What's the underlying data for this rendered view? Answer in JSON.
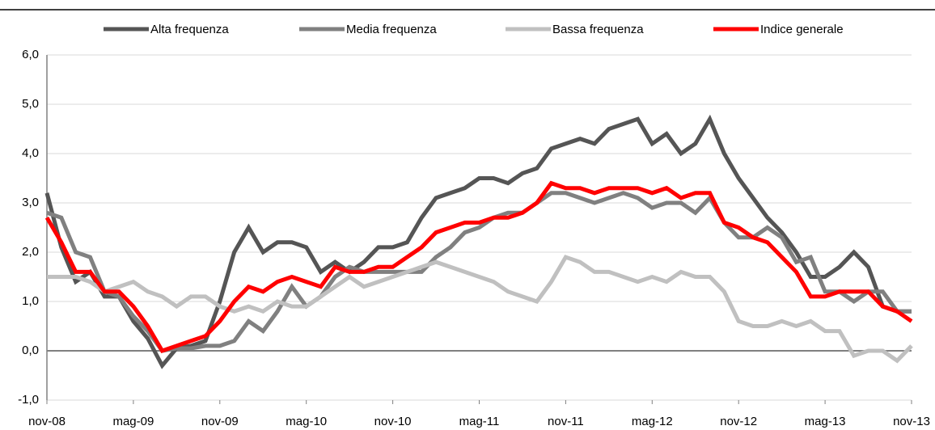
{
  "chart_data": {
    "type": "line",
    "categories": [
      "nov-08",
      null,
      null,
      null,
      null,
      null,
      "mag-09",
      null,
      null,
      null,
      null,
      null,
      "nov-09",
      null,
      null,
      null,
      null,
      null,
      "mag-10",
      null,
      null,
      null,
      null,
      null,
      "nov-10",
      null,
      null,
      null,
      null,
      null,
      "mag-11",
      null,
      null,
      null,
      null,
      null,
      "nov-11",
      null,
      null,
      null,
      null,
      null,
      "mag-12",
      null,
      null,
      null,
      null,
      null,
      "nov-12",
      null,
      null,
      null,
      null,
      null,
      "mag-13",
      null,
      null,
      null,
      null,
      null,
      "nov-13"
    ],
    "series": [
      {
        "name": "Alta frequenza",
        "color": "#555555",
        "values": [
          3.2,
          2.1,
          1.4,
          1.6,
          1.1,
          1.1,
          0.6,
          0.25,
          -0.3,
          0.05,
          0.1,
          0.2,
          1.0,
          2.0,
          2.5,
          2.0,
          2.2,
          2.2,
          2.1,
          1.6,
          1.8,
          1.6,
          1.8,
          2.1,
          2.1,
          2.2,
          2.7,
          3.1,
          3.2,
          3.3,
          3.5,
          3.5,
          3.4,
          3.6,
          3.7,
          4.1,
          4.2,
          4.3,
          4.2,
          4.5,
          4.6,
          4.7,
          4.2,
          4.4,
          4.0,
          4.2,
          4.7,
          4.0,
          3.5,
          3.1,
          2.7,
          2.4,
          2.0,
          1.5,
          1.5,
          1.7,
          2.0,
          1.7,
          0.9,
          0.8,
          0.8
        ]
      },
      {
        "name": "Media frequenza",
        "color": "#808080",
        "values": [
          2.8,
          2.7,
          2.0,
          1.9,
          1.2,
          1.1,
          0.7,
          0.4,
          0.0,
          0.05,
          0.05,
          0.1,
          0.1,
          0.2,
          0.6,
          0.4,
          0.8,
          1.3,
          0.9,
          1.1,
          1.5,
          1.7,
          1.6,
          1.6,
          1.6,
          1.6,
          1.6,
          1.9,
          2.1,
          2.4,
          2.5,
          2.7,
          2.8,
          2.8,
          3.0,
          3.2,
          3.2,
          3.1,
          3.0,
          3.1,
          3.2,
          3.1,
          2.9,
          3.0,
          3.0,
          2.8,
          3.1,
          2.6,
          2.3,
          2.3,
          2.5,
          2.3,
          1.8,
          1.9,
          1.2,
          1.2,
          1.0,
          1.2,
          1.2,
          0.8,
          0.8
        ]
      },
      {
        "name": "Bassa frequenza",
        "color": "#c0c0c0",
        "values": [
          1.5,
          1.5,
          1.5,
          1.4,
          1.2,
          1.3,
          1.4,
          1.2,
          1.1,
          0.9,
          1.1,
          1.1,
          0.9,
          0.8,
          0.9,
          0.8,
          1.0,
          0.9,
          0.9,
          1.1,
          1.3,
          1.5,
          1.3,
          1.4,
          1.5,
          1.6,
          1.7,
          1.8,
          1.7,
          1.6,
          1.5,
          1.4,
          1.2,
          1.1,
          1.0,
          1.4,
          1.9,
          1.8,
          1.6,
          1.6,
          1.5,
          1.4,
          1.5,
          1.4,
          1.6,
          1.5,
          1.5,
          1.2,
          0.6,
          0.5,
          0.5,
          0.6,
          0.5,
          0.6,
          0.4,
          0.4,
          -0.1,
          0.0,
          0.0,
          -0.2,
          0.1
        ]
      },
      {
        "name": "Indice generale",
        "color": "#ff0000",
        "values": [
          2.7,
          2.2,
          1.6,
          1.6,
          1.2,
          1.2,
          0.9,
          0.5,
          0.0,
          0.1,
          0.2,
          0.3,
          0.6,
          1.0,
          1.3,
          1.2,
          1.4,
          1.5,
          1.4,
          1.3,
          1.7,
          1.6,
          1.6,
          1.7,
          1.7,
          1.9,
          2.1,
          2.4,
          2.5,
          2.6,
          2.6,
          2.7,
          2.7,
          2.8,
          3.0,
          3.4,
          3.3,
          3.3,
          3.2,
          3.3,
          3.3,
          3.3,
          3.2,
          3.3,
          3.1,
          3.2,
          3.2,
          2.6,
          2.5,
          2.3,
          2.2,
          1.9,
          1.6,
          1.1,
          1.1,
          1.2,
          1.2,
          1.2,
          0.9,
          0.8,
          0.6
        ]
      }
    ],
    "ylim": [
      -1,
      6
    ],
    "yticks": [
      {
        "value": -1,
        "label": "-1,0"
      },
      {
        "value": 0,
        "label": "0,0"
      },
      {
        "value": 1,
        "label": "1,0"
      },
      {
        "value": 2,
        "label": "2,0"
      },
      {
        "value": 3,
        "label": "3,0"
      },
      {
        "value": 4,
        "label": "4,0"
      },
      {
        "value": 5,
        "label": "5,0"
      },
      {
        "value": 6,
        "label": "6,0"
      }
    ],
    "grid": true,
    "legend": "top"
  }
}
